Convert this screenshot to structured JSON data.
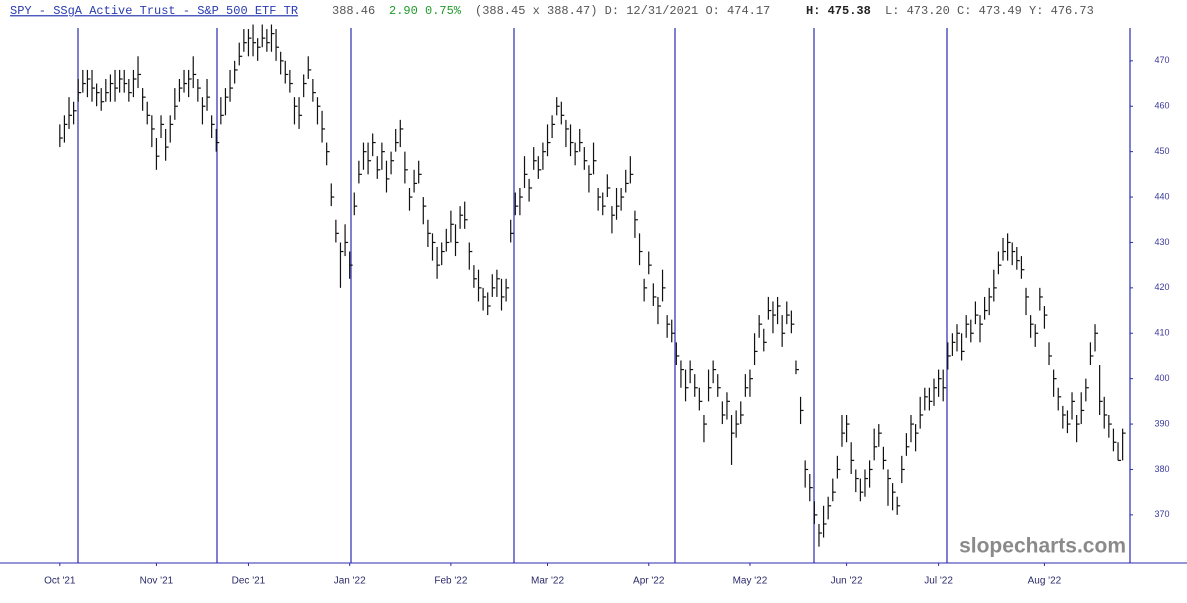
{
  "header": {
    "title": "SPY - SSgA Active Trust - S&P 500 ETF TR",
    "last": "388.46",
    "change": "2.90 0.75%",
    "quote": "(388.45 x 388.47) D: 12/31/2021 O: 474.17",
    "high": "H: 475.38",
    "rest": "L: 473.20 C: 473.49 Y: 476.73"
  },
  "watermark": "slopecharts.com",
  "chart_data": {
    "type": "ohlc",
    "color": "#111111",
    "xlim": [
      -13,
      232.6
    ],
    "xticks": [
      {
        "value": 0,
        "label": "Oct '21"
      },
      {
        "value": 21,
        "label": "Nov '21"
      },
      {
        "value": 41,
        "label": "Dec '21"
      },
      {
        "value": 63,
        "label": "Jan '22"
      },
      {
        "value": 85,
        "label": "Feb '22"
      },
      {
        "value": 106,
        "label": "Mar '22"
      },
      {
        "value": 128,
        "label": "Apr '22"
      },
      {
        "value": 150,
        "label": "May '22"
      },
      {
        "value": 171,
        "label": "Jun '22"
      },
      {
        "value": 191,
        "label": "Jul '22"
      },
      {
        "value": 214,
        "label": "Aug '22"
      }
    ],
    "ylim": [
      359.4,
      483.4
    ],
    "yticks": [
      370,
      380,
      390,
      400,
      410,
      420,
      430,
      440,
      450,
      460,
      470
    ],
    "high": [
      456,
      458,
      462,
      461,
      466,
      468,
      468,
      468,
      465,
      464,
      466,
      467,
      468,
      468,
      468,
      466,
      468,
      471,
      464,
      461,
      458,
      453,
      458,
      455,
      458,
      464,
      466,
      468,
      468,
      471,
      466,
      462,
      466,
      458,
      455,
      462,
      464,
      468,
      470,
      474,
      477,
      477,
      478,
      475,
      478,
      477,
      478,
      477,
      472,
      470,
      468,
      462,
      462,
      467,
      471,
      466,
      462,
      459,
      452,
      443,
      435,
      430,
      434,
      428,
      441,
      448,
      452,
      452,
      454,
      449,
      452,
      448,
      450,
      455,
      457,
      450,
      442,
      446,
      448,
      440,
      435,
      432,
      429,
      430,
      433,
      437,
      434,
      438,
      439,
      430,
      425,
      424,
      420,
      419,
      423,
      424,
      422,
      422,
      435,
      441,
      442,
      449,
      444,
      451,
      449,
      452,
      456,
      458,
      462,
      461,
      457,
      456,
      452,
      455,
      451,
      447,
      452,
      442,
      441,
      445,
      438,
      442,
      442,
      446,
      449,
      437,
      432,
      422,
      428,
      421,
      418,
      424,
      414,
      413,
      408,
      404,
      402,
      404,
      401,
      398,
      392,
      402,
      404,
      401,
      395,
      397,
      392,
      393,
      395,
      401,
      402,
      410,
      414,
      411,
      418,
      417,
      418,
      414,
      417,
      415,
      404,
      396,
      382,
      379,
      373,
      368,
      372,
      374,
      378,
      383,
      392,
      392,
      386,
      380,
      378,
      380,
      382,
      389,
      390,
      385,
      380,
      377,
      374,
      383,
      388,
      392,
      390,
      396,
      398,
      398,
      400,
      402,
      402,
      408,
      410,
      412,
      410,
      414,
      413,
      417,
      414,
      418,
      420,
      424,
      428,
      431,
      432,
      430,
      429,
      427,
      420,
      414,
      412,
      420,
      416,
      408,
      402,
      398,
      394,
      393,
      397,
      392,
      397,
      400,
      408,
      412,
      403,
      396,
      392,
      389,
      386,
      389
    ],
    "low": [
      451,
      452,
      455,
      456,
      461,
      463,
      462,
      461,
      460,
      459,
      461,
      461,
      461,
      463,
      463,
      461,
      462,
      464,
      459,
      456,
      451,
      446,
      453,
      448,
      452,
      457,
      461,
      463,
      462,
      464,
      461,
      456,
      459,
      453,
      450,
      456,
      458,
      461,
      465,
      469,
      472,
      471,
      471,
      470,
      473,
      472,
      472,
      470,
      467,
      465,
      463,
      456,
      455,
      462,
      466,
      461,
      456,
      452,
      447,
      438,
      430,
      420,
      427,
      422,
      436,
      443,
      446,
      445,
      449,
      444,
      446,
      441,
      445,
      450,
      451,
      443,
      437,
      441,
      443,
      434,
      429,
      426,
      422,
      425,
      428,
      430,
      427,
      433,
      433,
      424,
      420,
      417,
      415,
      414,
      418,
      418,
      415,
      417,
      430,
      436,
      436,
      442,
      439,
      446,
      444,
      446,
      449,
      453,
      458,
      456,
      451,
      449,
      447,
      450,
      446,
      441,
      445,
      437,
      436,
      440,
      432,
      435,
      437,
      441,
      443,
      431,
      425,
      417,
      423,
      416,
      412,
      417,
      409,
      408,
      403,
      398,
      395,
      399,
      396,
      393,
      386,
      395,
      399,
      396,
      390,
      391,
      381,
      387,
      390,
      396,
      396,
      403,
      409,
      406,
      413,
      410,
      412,
      407,
      412,
      410,
      401,
      390,
      376,
      373,
      368,
      363,
      365,
      369,
      373,
      378,
      385,
      386,
      379,
      375,
      373,
      374,
      376,
      382,
      385,
      380,
      372,
      371,
      370,
      377,
      383,
      386,
      384,
      389,
      393,
      393,
      394,
      396,
      395,
      402,
      405,
      406,
      404,
      409,
      408,
      412,
      408,
      413,
      414,
      417,
      423,
      426,
      426,
      425,
      424,
      422,
      414,
      409,
      407,
      415,
      411,
      403,
      396,
      393,
      389,
      388,
      391,
      386,
      390,
      395,
      403,
      406,
      392,
      389,
      387,
      384,
      382,
      382
    ],
    "close": [
      453,
      456,
      458,
      459,
      463,
      465,
      466,
      464,
      463,
      461,
      463,
      465,
      464,
      466,
      465,
      463,
      466,
      467,
      462,
      458,
      455,
      449,
      456,
      451,
      456,
      460,
      464,
      465,
      466,
      467,
      464,
      460,
      462,
      456,
      452,
      458,
      462,
      464,
      468,
      471,
      474,
      475,
      474,
      473,
      475,
      474,
      476,
      473,
      470,
      467,
      465,
      460,
      458,
      465,
      468,
      463,
      460,
      455,
      450,
      440,
      432,
      428,
      430,
      425,
      438,
      445,
      450,
      448,
      452,
      446,
      450,
      444,
      448,
      452,
      455,
      446,
      440,
      443,
      445,
      438,
      432,
      430,
      425,
      428,
      430,
      434,
      430,
      436,
      435,
      428,
      422,
      420,
      418,
      416,
      420,
      422,
      418,
      420,
      432,
      438,
      440,
      445,
      442,
      448,
      446,
      450,
      452,
      456,
      460,
      458,
      455,
      452,
      450,
      452,
      448,
      445,
      448,
      440,
      438,
      442,
      436,
      438,
      440,
      443,
      445,
      435,
      428,
      420,
      425,
      418,
      416,
      420,
      412,
      410,
      405,
      402,
      398,
      402,
      398,
      395,
      390,
      398,
      402,
      398,
      392,
      395,
      388,
      390,
      392,
      398,
      400,
      406,
      412,
      408,
      415,
      414,
      416,
      410,
      414,
      412,
      402,
      393,
      380,
      376,
      370,
      366,
      368,
      372,
      375,
      380,
      388,
      390,
      382,
      378,
      375,
      378,
      380,
      385,
      388,
      382,
      378,
      375,
      372,
      380,
      385,
      390,
      388,
      392,
      396,
      395,
      398,
      400,
      398,
      405,
      408,
      410,
      406,
      412,
      410,
      414,
      412,
      415,
      418,
      420,
      425,
      428,
      430,
      428,
      426,
      424,
      418,
      412,
      410,
      418,
      414,
      405,
      400,
      396,
      392,
      390,
      395,
      390,
      393,
      398,
      405,
      410,
      395,
      392,
      390,
      386,
      382,
      388
    ]
  }
}
